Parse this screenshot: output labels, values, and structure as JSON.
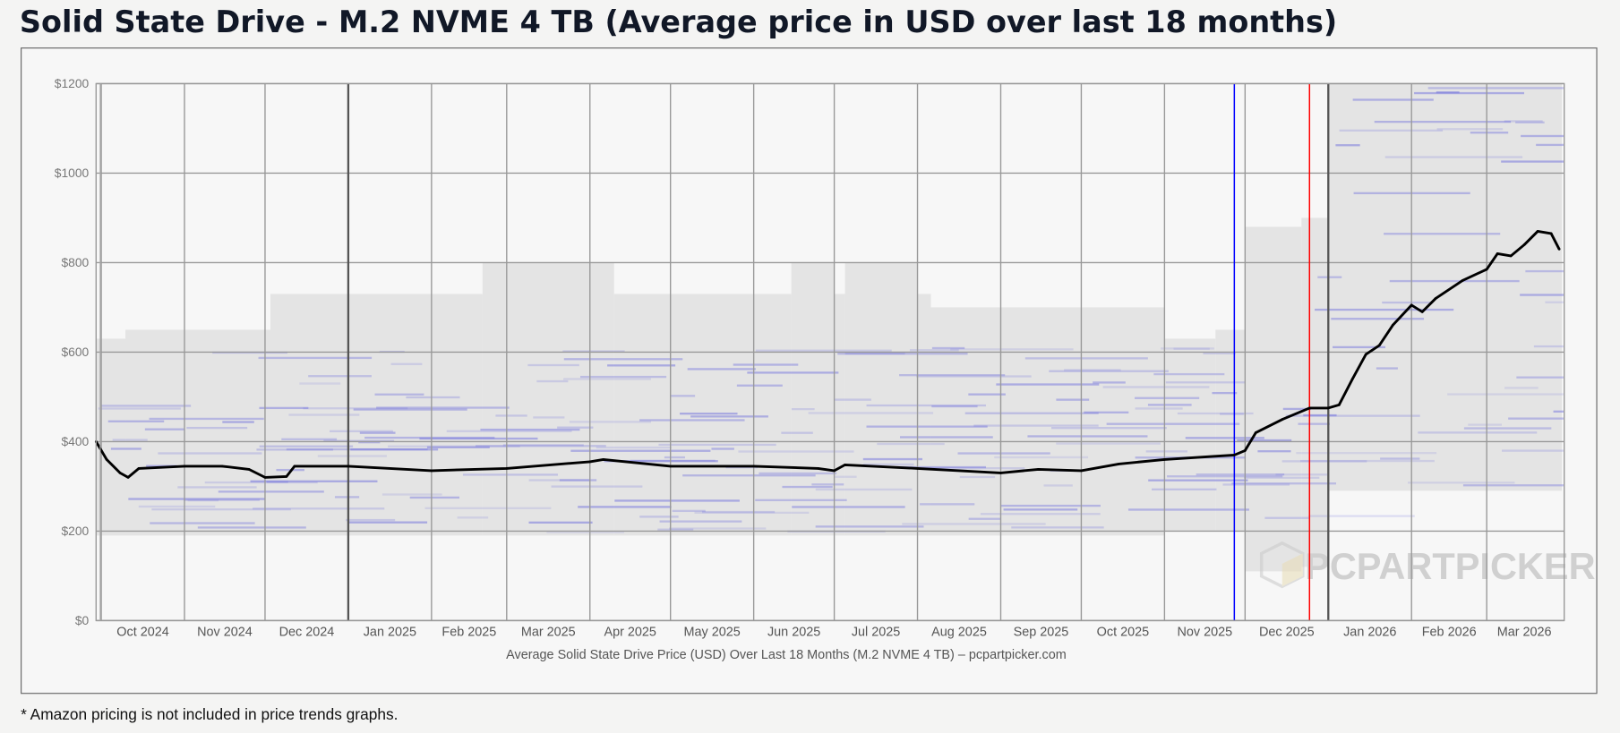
{
  "title": "Solid State Drive - M.2 NVME 4 TB (Average price in USD over last 18 months)",
  "footnote": "* Amazon pricing is not included in price trends graphs.",
  "watermark": "PCPARTPICKER",
  "chart_data": {
    "type": "line",
    "xlabel": "Average Solid State Drive Price (USD) Over Last 18 Months (M.2 NVME 4 TB) – pcpartpicker.com",
    "ylabel": "",
    "ylim": [
      0,
      1200
    ],
    "y_ticks": [
      0,
      200,
      400,
      600,
      800,
      1000,
      1200
    ],
    "y_tick_labels": [
      "$0",
      "$200",
      "$400",
      "$600",
      "$800",
      "$1000",
      "$1200"
    ],
    "xlim": [
      "2024-09-29",
      "2026-03-29"
    ],
    "x_tick_labels": [
      "Oct 2024",
      "Nov 2024",
      "Dec 2024",
      "Jan 2025",
      "Feb 2025",
      "Mar 2025",
      "Apr 2025",
      "May 2025",
      "Jun 2025",
      "Jul 2025",
      "Aug 2025",
      "Sep 2025",
      "Oct 2025",
      "Nov 2025",
      "Dec 2025",
      "Jan 2026",
      "Feb 2026",
      "Mar 2026"
    ],
    "x_tick_dates": [
      "2024-10-01",
      "2024-11-01",
      "2024-12-01",
      "2025-01-01",
      "2025-02-01",
      "2025-03-01",
      "2025-04-01",
      "2025-05-01",
      "2025-06-01",
      "2025-07-01",
      "2025-08-01",
      "2025-09-01",
      "2025-10-01",
      "2025-11-01",
      "2025-12-01",
      "2026-01-01",
      "2026-02-01",
      "2026-03-01"
    ],
    "grid": true,
    "colors": {
      "average": "#000000",
      "range": "#e4e4e4",
      "listings": "#6b6bdc",
      "marker_1": "#0000ff",
      "marker_2": "#ff0000",
      "year_line": "#555555"
    },
    "markers": [
      {
        "date": "2025-11-27",
        "color": "#0000ff"
      },
      {
        "date": "2025-12-25",
        "color": "#ff0000"
      }
    ],
    "series": [
      {
        "x": [
          "2024-09-29",
          "2024-10-03",
          "2024-10-08",
          "2024-10-11",
          "2024-10-15",
          "2024-11-01",
          "2024-11-15",
          "2024-11-25",
          "2024-12-01",
          "2024-12-09",
          "2024-12-12",
          "2025-01-01",
          "2025-02-01",
          "2025-03-01",
          "2025-04-01",
          "2025-04-06",
          "2025-05-01",
          "2025-06-01",
          "2025-06-25",
          "2025-07-01",
          "2025-07-05",
          "2025-08-01",
          "2025-09-01",
          "2025-09-15",
          "2025-10-01",
          "2025-10-15",
          "2025-11-01",
          "2025-11-27",
          "2025-12-01",
          "2025-12-05",
          "2025-12-15",
          "2025-12-25",
          "2026-01-01",
          "2026-01-05",
          "2026-01-10",
          "2026-01-15",
          "2026-01-20",
          "2026-01-25",
          "2026-02-01",
          "2026-02-05",
          "2026-02-10",
          "2026-02-20",
          "2026-03-01",
          "2026-03-05",
          "2026-03-10",
          "2026-03-15",
          "2026-03-20",
          "2026-03-25",
          "2026-03-28"
        ],
        "values": [
          400,
          360,
          330,
          320,
          340,
          345,
          345,
          338,
          320,
          322,
          345,
          345,
          335,
          340,
          355,
          360,
          345,
          345,
          340,
          335,
          348,
          340,
          330,
          338,
          335,
          350,
          360,
          370,
          380,
          420,
          450,
          475,
          475,
          482,
          540,
          595,
          615,
          660,
          705,
          690,
          720,
          760,
          785,
          820,
          815,
          840,
          870,
          865,
          830
        ]
      }
    ],
    "price_range": {
      "x": [
        "2024-09-29",
        "2024-10-10",
        "2024-11-01",
        "2024-12-03",
        "2025-02-20",
        "2025-04-10",
        "2025-06-15",
        "2025-07-01",
        "2025-07-05",
        "2025-08-01",
        "2025-08-06",
        "2025-11-01",
        "2025-11-20",
        "2025-12-01",
        "2025-12-22",
        "2026-01-01",
        "2026-03-29"
      ],
      "high": [
        630,
        650,
        650,
        730,
        800,
        730,
        800,
        730,
        800,
        730,
        700,
        630,
        650,
        880,
        900,
        1200,
        1200
      ],
      "low": [
        190,
        190,
        190,
        190,
        190,
        190,
        190,
        190,
        190,
        190,
        190,
        200,
        200,
        110,
        120,
        290,
        170
      ]
    }
  }
}
